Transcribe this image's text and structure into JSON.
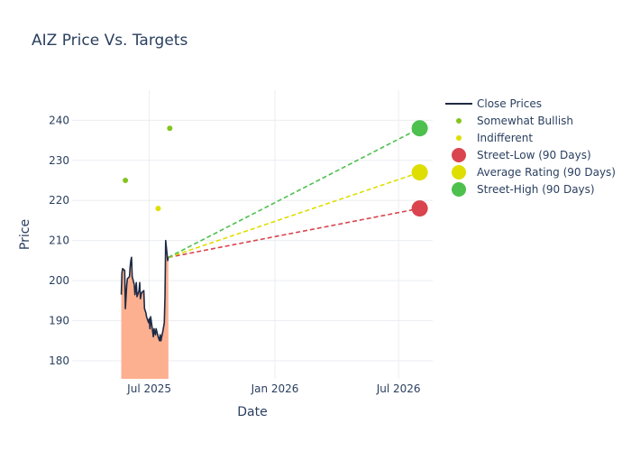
{
  "chart_data": {
    "type": "line",
    "title": "AIZ Price Vs. Targets",
    "xlabel": "Date",
    "ylabel": "Price",
    "x_range": [
      "2025-03-10",
      "2026-08-20"
    ],
    "y_range": [
      175.5,
      247.5
    ],
    "x_ticks": [
      {
        "date": "2025-07-01",
        "label": "Jul 2025"
      },
      {
        "date": "2026-01-01",
        "label": "Jan 2026"
      },
      {
        "date": "2026-07-01",
        "label": "Jul 2026"
      }
    ],
    "y_ticks": [
      180,
      190,
      200,
      210,
      220,
      230,
      240
    ],
    "grid": true,
    "legend_position": "top-right",
    "colors": {
      "close": "#1f2a44",
      "fill": "#fdb08f",
      "somewhat_bullish": "#84c41e",
      "indifferent": "#dede00",
      "street_low": "#d9444e",
      "average": "#dede00",
      "street_high": "#4dc04e",
      "grid": "#ebedf1",
      "text": "#2a3f5f"
    },
    "series": [
      {
        "name": "Close Prices",
        "kind": "line",
        "points": [
          [
            "2025-05-21",
            196.5
          ],
          [
            "2025-05-22",
            202.0
          ],
          [
            "2025-05-23",
            203.0
          ],
          [
            "2025-05-26",
            202.5
          ],
          [
            "2025-05-27",
            193.0
          ],
          [
            "2025-05-28",
            196.0
          ],
          [
            "2025-05-29",
            199.0
          ],
          [
            "2025-05-30",
            200.5
          ],
          [
            "2025-06-02",
            201.0
          ],
          [
            "2025-06-03",
            203.5
          ],
          [
            "2025-06-04",
            205.0
          ],
          [
            "2025-06-05",
            205.8
          ],
          [
            "2025-06-06",
            201.0
          ],
          [
            "2025-06-09",
            199.0
          ],
          [
            "2025-06-10",
            196.5
          ],
          [
            "2025-06-11",
            198.0
          ],
          [
            "2025-06-12",
            199.5
          ],
          [
            "2025-06-13",
            196.0
          ],
          [
            "2025-06-16",
            197.5
          ],
          [
            "2025-06-17",
            199.5
          ],
          [
            "2025-06-18",
            195.5
          ],
          [
            "2025-06-19",
            196.5
          ],
          [
            "2025-06-20",
            197.0
          ],
          [
            "2025-06-23",
            197.5
          ],
          [
            "2025-06-24",
            193.0
          ],
          [
            "2025-06-25",
            192.5
          ],
          [
            "2025-06-26",
            192.0
          ],
          [
            "2025-06-27",
            191.0
          ],
          [
            "2025-06-30",
            189.5
          ],
          [
            "2025-07-01",
            190.5
          ],
          [
            "2025-07-02",
            188.0
          ],
          [
            "2025-07-03",
            191.0
          ],
          [
            "2025-07-07",
            186.0
          ],
          [
            "2025-07-08",
            188.0
          ],
          [
            "2025-07-09",
            187.0
          ],
          [
            "2025-07-10",
            186.5
          ],
          [
            "2025-07-11",
            188.0
          ],
          [
            "2025-07-14",
            186.0
          ],
          [
            "2025-07-15",
            185.5
          ],
          [
            "2025-07-16",
            185.0
          ],
          [
            "2025-07-17",
            186.5
          ],
          [
            "2025-07-18",
            185.0
          ],
          [
            "2025-07-21",
            187.5
          ],
          [
            "2025-07-22",
            188.5
          ],
          [
            "2025-07-23",
            189.5
          ],
          [
            "2025-07-24",
            196.0
          ],
          [
            "2025-07-25",
            210.0
          ],
          [
            "2025-07-28",
            205.0
          ],
          [
            "2025-07-29",
            206.0
          ]
        ]
      },
      {
        "name": "Somewhat Bullish",
        "kind": "markers",
        "points": [
          [
            "2025-05-27",
            225
          ],
          [
            "2025-07-31",
            238
          ]
        ]
      },
      {
        "name": "Indifferent",
        "kind": "markers",
        "points": [
          [
            "2025-07-14",
            218
          ]
        ]
      },
      {
        "name": "Street-Low (90 Days)",
        "kind": "target",
        "from": [
          "2025-07-29",
          205.8
        ],
        "to": [
          "2026-08-01",
          218
        ]
      },
      {
        "name": "Average Rating (90 Days)",
        "kind": "target",
        "from": [
          "2025-07-29",
          205.8
        ],
        "to": [
          "2026-08-01",
          227
        ]
      },
      {
        "name": "Street-High (90 Days)",
        "kind": "target",
        "from": [
          "2025-07-29",
          205.8
        ],
        "to": [
          "2026-08-01",
          238
        ]
      }
    ]
  }
}
